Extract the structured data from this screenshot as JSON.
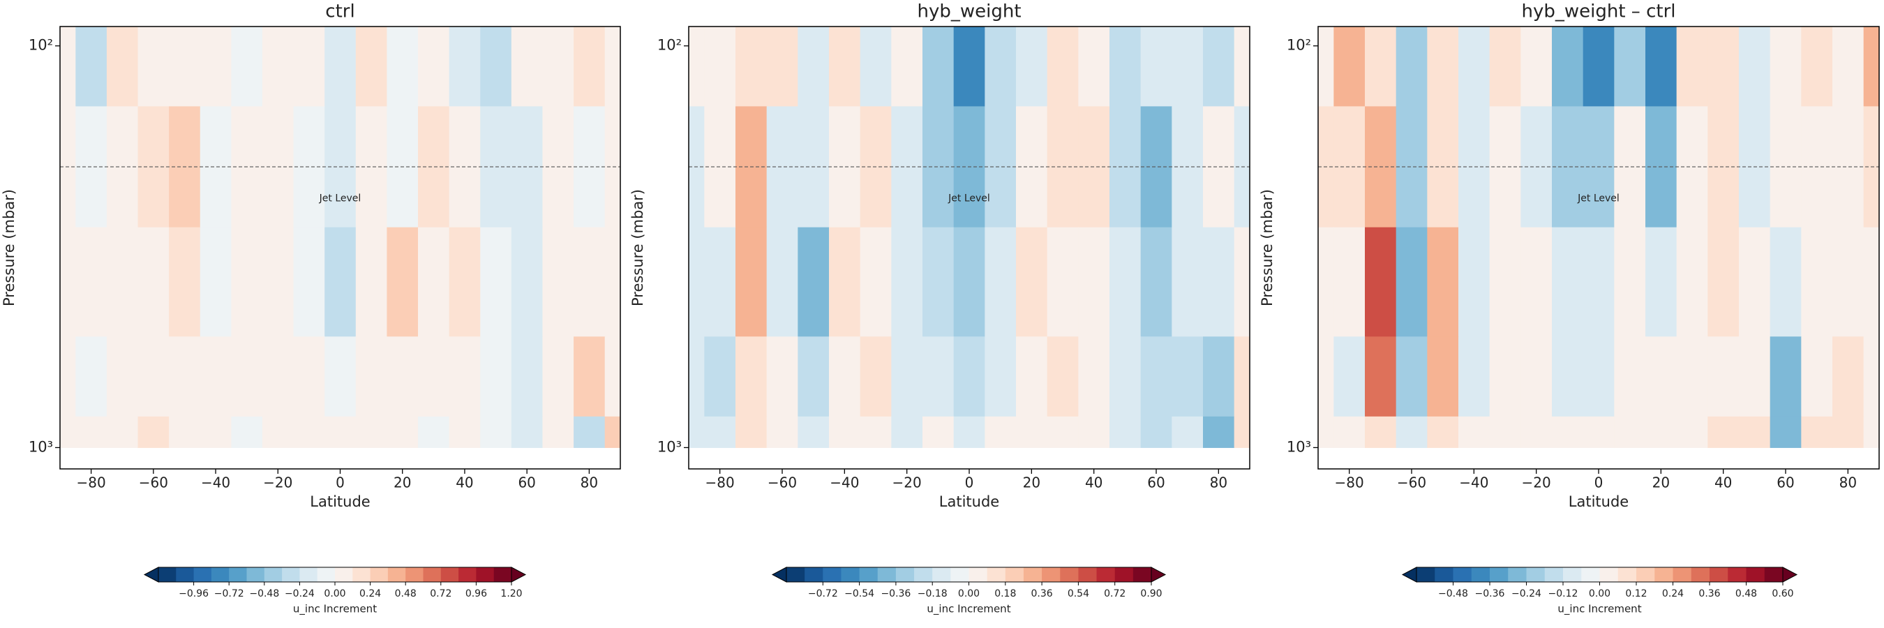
{
  "chart_data": [
    {
      "type": "contour",
      "title": "ctrl",
      "xlabel": "Latitude",
      "ylabel": "Pressure (mbar)",
      "colorbar_label": "u_inc Increment",
      "x": [
        -90,
        -80,
        -70,
        -60,
        -50,
        -40,
        -30,
        -20,
        -10,
        0,
        10,
        20,
        30,
        40,
        50,
        60,
        70,
        80,
        90
      ],
      "y": [
        100,
        200,
        400,
        700,
        1000
      ],
      "z": [
        [
          0.1,
          -0.3,
          0.2,
          0.1,
          0,
          0.1,
          -0.1,
          0,
          0.1,
          -0.2,
          0.2,
          -0.1,
          0.1,
          -0.2,
          -0.3,
          0,
          0.1,
          0.2,
          0
        ],
        [
          0,
          -0.1,
          0.1,
          0.2,
          0.3,
          -0.1,
          0.1,
          0.1,
          -0.1,
          -0.2,
          0.1,
          -0.1,
          0.2,
          0,
          -0.2,
          -0.2,
          0,
          -0.1,
          0
        ],
        [
          0,
          0,
          0.1,
          0.1,
          0.2,
          -0.1,
          0,
          0.1,
          -0.1,
          -0.3,
          0,
          0.3,
          0.1,
          0.2,
          -0.1,
          -0.2,
          0,
          0.1,
          0
        ],
        [
          0,
          -0.1,
          0,
          0.1,
          0.1,
          0,
          0,
          0.1,
          0,
          -0.1,
          0,
          0.1,
          0,
          0.1,
          -0.1,
          -0.2,
          0.1,
          0.3,
          0.1
        ],
        [
          0,
          0,
          0.1,
          0.2,
          0,
          0,
          -0.1,
          0,
          0.1,
          0,
          0,
          0.1,
          -0.1,
          0,
          -0.1,
          -0.2,
          0.1,
          -0.3,
          0.3
        ]
      ],
      "xlim": [
        -90,
        90
      ],
      "ylim": [
        89.5,
        1130
      ],
      "log_y": true,
      "xticks": [
        {
          "value": -80,
          "label": "−80"
        },
        {
          "value": -60,
          "label": "−60"
        },
        {
          "value": -40,
          "label": "−40"
        },
        {
          "value": -20,
          "label": "−20"
        },
        0,
        20,
        40,
        60,
        80
      ],
      "yticks": [
        {
          "value": 100,
          "label": "10²"
        },
        {
          "value": 1000,
          "label": "10³"
        }
      ],
      "clim": [
        -1.2,
        1.2
      ],
      "n_levels": 20,
      "cbar_ticks": [
        {
          "value": -0.96,
          "label": "−0.96"
        },
        {
          "value": -0.72,
          "label": "−0.72"
        },
        {
          "value": -0.48,
          "label": "−0.48"
        },
        {
          "value": -0.24,
          "label": "−0.24"
        },
        {
          "value": 0,
          "label": "0.00"
        },
        {
          "value": 0.24,
          "label": "0.24"
        },
        {
          "value": 0.48,
          "label": "0.48"
        },
        {
          "value": 0.72,
          "label": "0.72"
        },
        {
          "value": 0.96,
          "label": "0.96"
        },
        {
          "value": 1.2,
          "label": "1.20"
        }
      ],
      "hline": 200,
      "annotation": {
        "text": "Jet Level",
        "x": 0,
        "y": 240
      },
      "colormap": [
        "#053061",
        "#2166ac",
        "#4393c3",
        "#92c5de",
        "#d1e5f0",
        "#f7f7f7",
        "#fddbc7",
        "#f4a582",
        "#d6604d",
        "#b2182b",
        "#67001f"
      ]
    },
    {
      "type": "contour",
      "title": "hyb_weight",
      "xlabel": "Latitude",
      "ylabel": "Pressure (mbar)",
      "colorbar_label": "u_inc Increment",
      "x": [
        -90,
        -80,
        -70,
        -60,
        -50,
        -40,
        -30,
        -20,
        -10,
        0,
        10,
        20,
        30,
        40,
        50,
        60,
        70,
        80,
        90
      ],
      "y": [
        100,
        200,
        400,
        700,
        1000
      ],
      "z": [
        [
          0,
          0,
          0.1,
          0.1,
          -0.1,
          0.1,
          -0.1,
          0,
          -0.3,
          -0.6,
          -0.2,
          -0.1,
          0.1,
          0,
          -0.2,
          -0.1,
          -0.1,
          -0.2,
          0
        ],
        [
          -0.1,
          0,
          0.3,
          -0.1,
          -0.1,
          0,
          0.1,
          -0.1,
          -0.3,
          -0.4,
          -0.2,
          0,
          0.1,
          0.1,
          -0.2,
          -0.4,
          -0.1,
          0,
          -0.1
        ],
        [
          -0.1,
          -0.1,
          0.3,
          -0.1,
          -0.4,
          0.1,
          0,
          -0.1,
          -0.2,
          -0.3,
          -0.1,
          0.1,
          0,
          0,
          -0.1,
          -0.3,
          -0.1,
          -0.1,
          0
        ],
        [
          -0.1,
          -0.2,
          0.1,
          0,
          -0.2,
          0,
          0.1,
          -0.1,
          -0.1,
          -0.2,
          -0.1,
          0,
          0.1,
          0,
          -0.1,
          -0.2,
          -0.2,
          -0.3,
          0.1
        ],
        [
          -0.1,
          -0.1,
          0.1,
          0,
          -0.1,
          0,
          0,
          -0.1,
          0,
          -0.1,
          0,
          0,
          0,
          0,
          -0.1,
          -0.2,
          -0.1,
          -0.4,
          0.1
        ]
      ],
      "xlim": [
        -90,
        90
      ],
      "ylim": [
        89.5,
        1130
      ],
      "log_y": true,
      "xticks": [
        {
          "value": -80,
          "label": "−80"
        },
        {
          "value": -60,
          "label": "−60"
        },
        {
          "value": -40,
          "label": "−40"
        },
        {
          "value": -20,
          "label": "−20"
        },
        0,
        20,
        40,
        60,
        80
      ],
      "yticks": [
        {
          "value": 100,
          "label": "10²"
        },
        {
          "value": 1000,
          "label": "10³"
        }
      ],
      "clim": [
        -0.9,
        0.9
      ],
      "n_levels": 20,
      "cbar_ticks": [
        {
          "value": -0.72,
          "label": "−0.72"
        },
        {
          "value": -0.54,
          "label": "−0.54"
        },
        {
          "value": -0.36,
          "label": "−0.36"
        },
        {
          "value": -0.18,
          "label": "−0.18"
        },
        {
          "value": 0,
          "label": "0.00"
        },
        {
          "value": 0.18,
          "label": "0.18"
        },
        {
          "value": 0.36,
          "label": "0.36"
        },
        {
          "value": 0.54,
          "label": "0.54"
        },
        {
          "value": 0.72,
          "label": "0.72"
        },
        {
          "value": 0.9,
          "label": "0.90"
        }
      ],
      "hline": 200,
      "annotation": {
        "text": "Jet Level",
        "x": 0,
        "y": 240
      },
      "colormap": [
        "#053061",
        "#2166ac",
        "#4393c3",
        "#92c5de",
        "#d1e5f0",
        "#f7f7f7",
        "#fddbc7",
        "#f4a582",
        "#d6604d",
        "#b2182b",
        "#67001f"
      ]
    },
    {
      "type": "contour",
      "title": "hyb_weight – ctrl",
      "xlabel": "Latitude",
      "ylabel": "Pressure (mbar)",
      "colorbar_label": "u_inc Increment",
      "x": [
        -90,
        -80,
        -70,
        -60,
        -50,
        -40,
        -30,
        -20,
        -10,
        0,
        10,
        20,
        30,
        40,
        50,
        60,
        70,
        80,
        90
      ],
      "y": [
        100,
        200,
        400,
        700,
        1000
      ],
      "z": [
        [
          0,
          0.2,
          0.1,
          -0.2,
          0.1,
          -0.1,
          0.1,
          0,
          -0.3,
          -0.4,
          -0.2,
          -0.4,
          0.1,
          0.1,
          -0.1,
          0,
          0.1,
          0,
          0.2
        ],
        [
          0.1,
          0.1,
          0.2,
          -0.2,
          0.1,
          -0.1,
          0,
          -0.1,
          -0.2,
          -0.2,
          0,
          -0.3,
          0,
          0.1,
          -0.1,
          0,
          0,
          0,
          0.1
        ],
        [
          0,
          0,
          0.4,
          -0.3,
          0.2,
          -0.1,
          0,
          0,
          -0.1,
          -0.1,
          0,
          -0.1,
          0,
          0.1,
          0,
          -0.1,
          0,
          0,
          0
        ],
        [
          0,
          -0.1,
          0.3,
          -0.2,
          0.2,
          -0.1,
          0,
          0,
          -0.1,
          -0.1,
          0,
          0,
          0,
          0,
          0,
          -0.3,
          0,
          0.1,
          0
        ],
        [
          0,
          0,
          0.1,
          -0.1,
          0.1,
          0,
          0,
          0,
          0,
          0,
          0,
          0,
          0,
          0.1,
          0.1,
          -0.3,
          0.1,
          0.1,
          0
        ]
      ],
      "xlim": [
        -90,
        90
      ],
      "ylim": [
        89.5,
        1130
      ],
      "log_y": true,
      "xticks": [
        {
          "value": -80,
          "label": "−80"
        },
        {
          "value": -60,
          "label": "−60"
        },
        {
          "value": -40,
          "label": "−40"
        },
        {
          "value": -20,
          "label": "−20"
        },
        0,
        20,
        40,
        60,
        80
      ],
      "yticks": [
        {
          "value": 100,
          "label": "10²"
        },
        {
          "value": 1000,
          "label": "10³"
        }
      ],
      "clim": [
        -0.6,
        0.6
      ],
      "n_levels": 20,
      "cbar_ticks": [
        {
          "value": -0.48,
          "label": "−0.48"
        },
        {
          "value": -0.36,
          "label": "−0.36"
        },
        {
          "value": -0.24,
          "label": "−0.24"
        },
        {
          "value": -0.12,
          "label": "−0.12"
        },
        {
          "value": 0,
          "label": "0.00"
        },
        {
          "value": 0.12,
          "label": "0.12"
        },
        {
          "value": 0.24,
          "label": "0.24"
        },
        {
          "value": 0.36,
          "label": "0.36"
        },
        {
          "value": 0.48,
          "label": "0.48"
        },
        {
          "value": 0.6,
          "label": "0.60"
        }
      ],
      "hline": 200,
      "annotation": {
        "text": "Jet Level",
        "x": 0,
        "y": 240
      },
      "colormap": [
        "#053061",
        "#2166ac",
        "#4393c3",
        "#92c5de",
        "#d1e5f0",
        "#f7f7f7",
        "#fddbc7",
        "#f4a582",
        "#d6604d",
        "#b2182b",
        "#67001f"
      ]
    }
  ]
}
